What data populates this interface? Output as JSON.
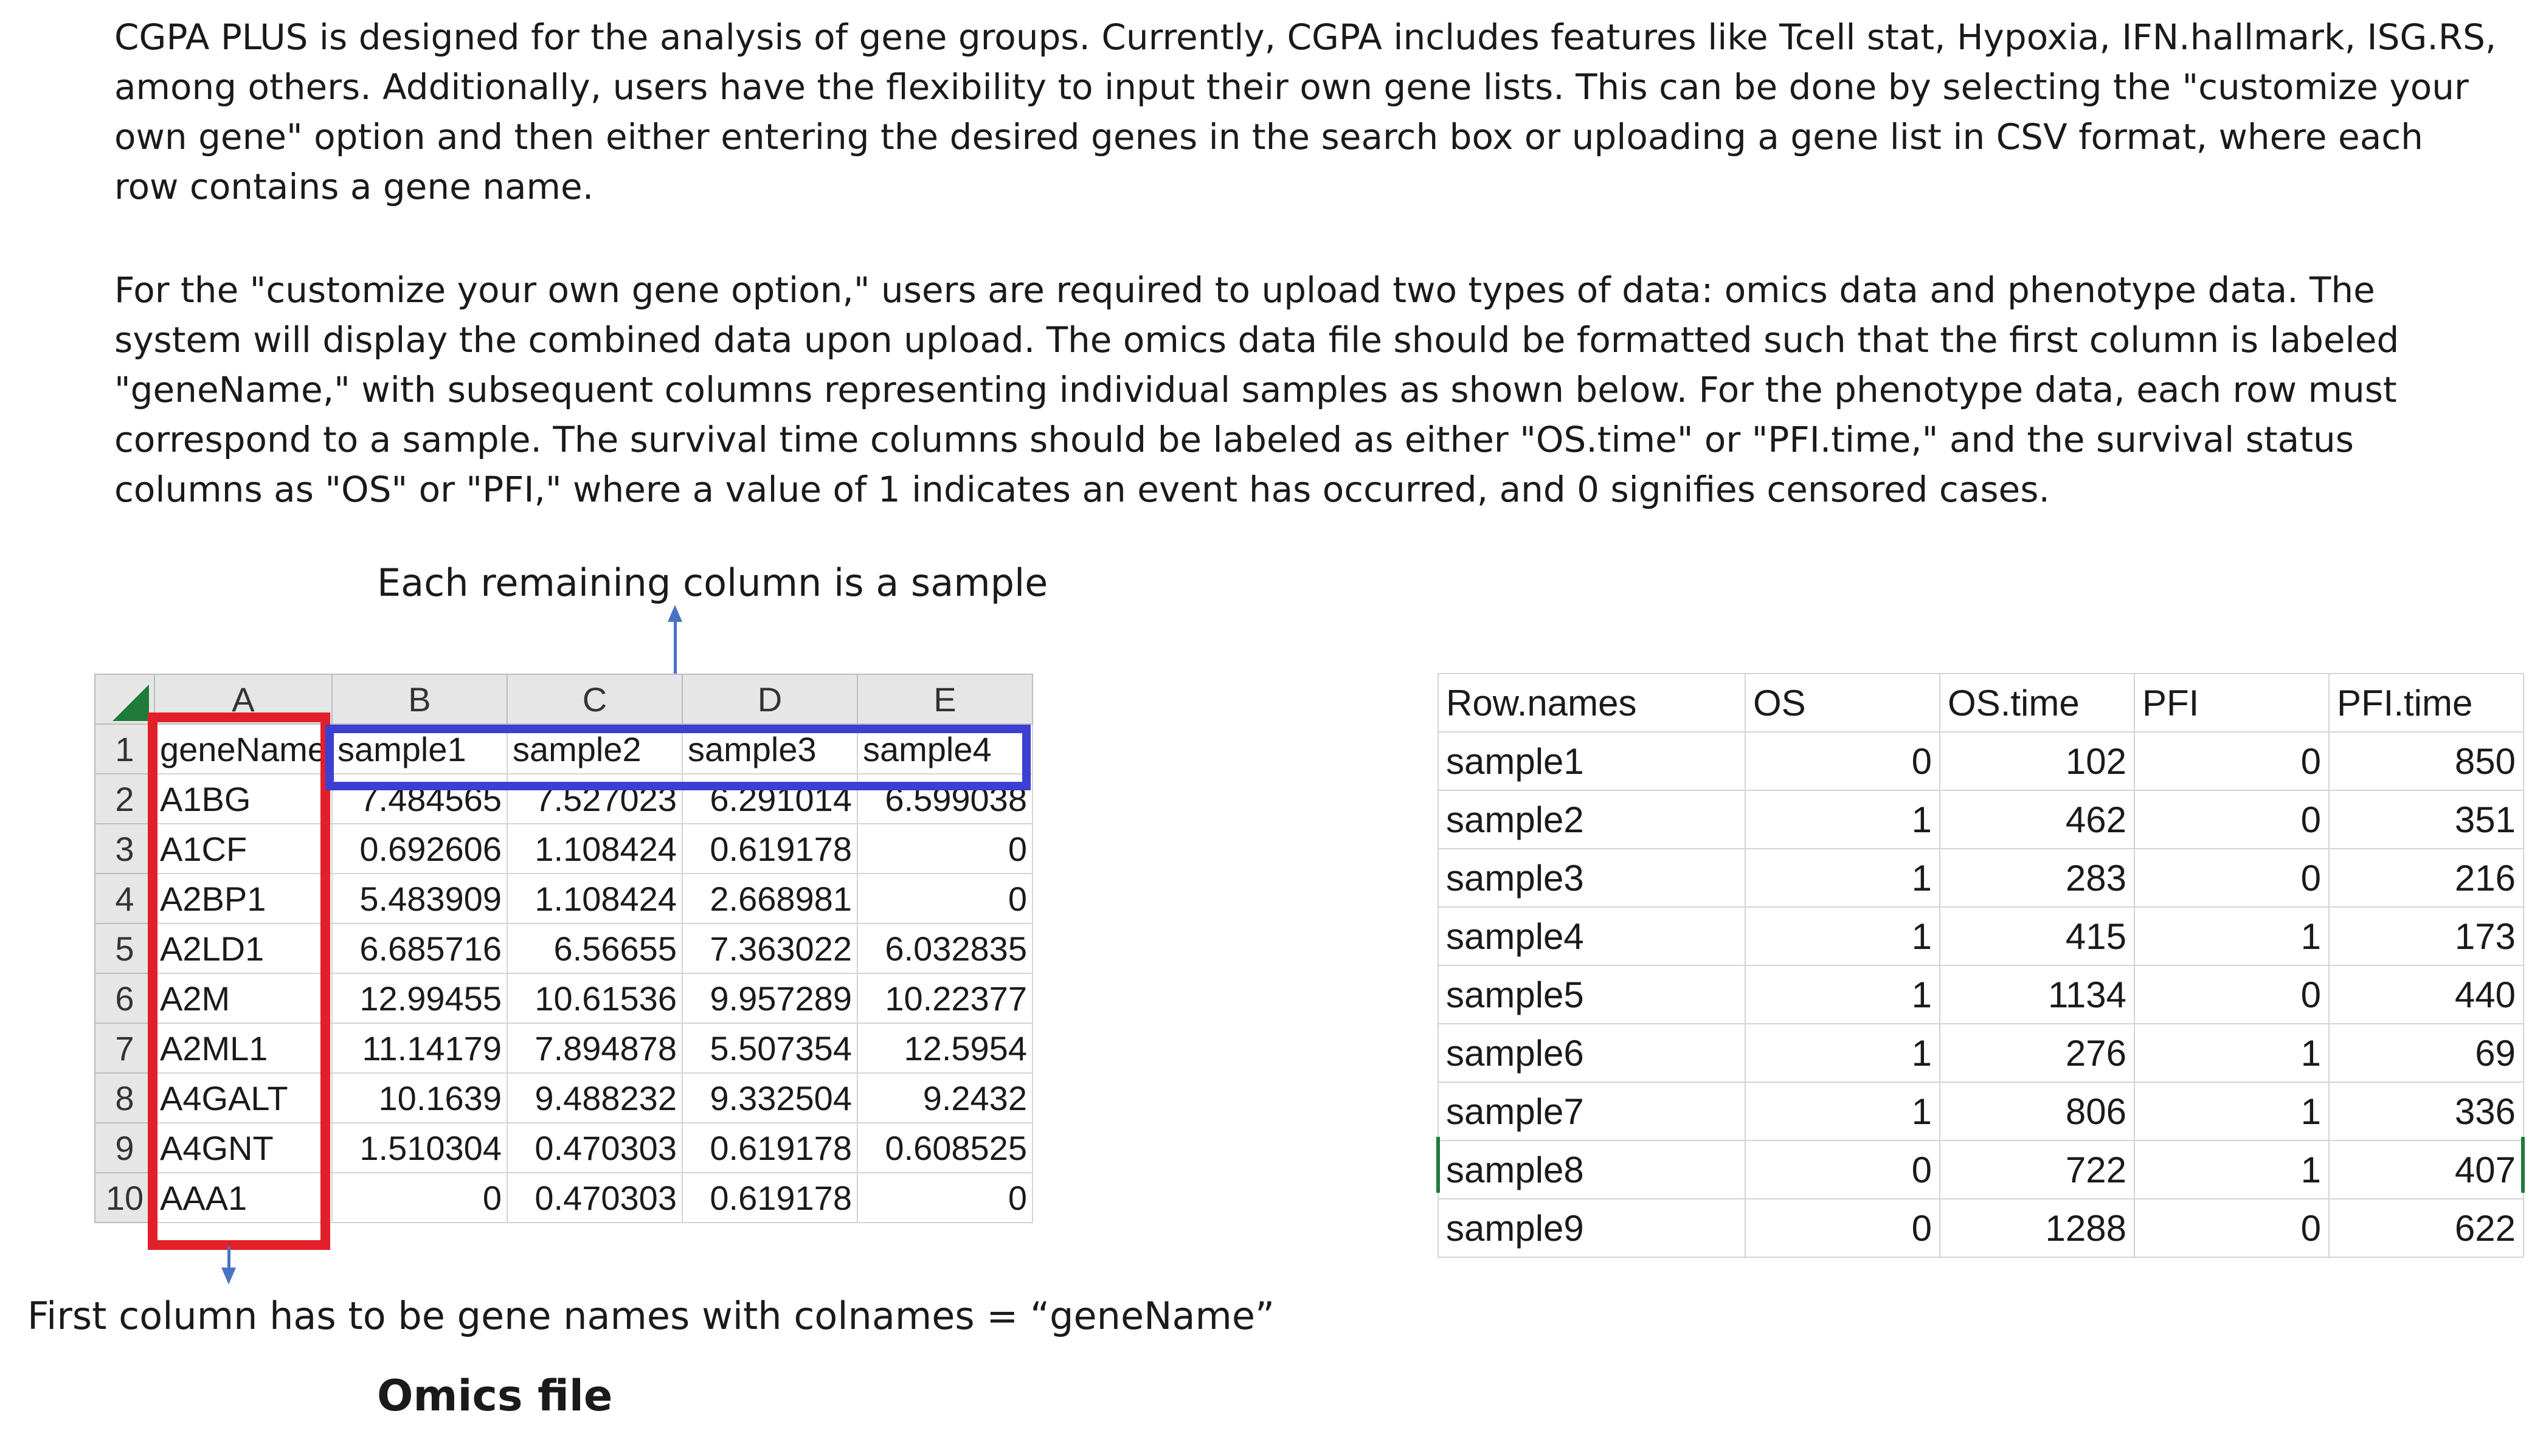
{
  "paragraphs": {
    "intro": "CGPA PLUS is designed for the analysis of gene groups. Currently, CGPA includes features like Tcell stat, Hypoxia, IFN.hallmark, ISG.RS, among others. Additionally, users have the flexibility to input their own gene lists. This can be done by selecting the \"customize your own gene\" option and then either entering the desired genes in the search box or uploading a gene list in CSV format, where each row contains a gene name.",
    "upload": "For the \"customize your own gene option,\" users are required to upload two types of data: omics data and phenotype data. The system will display the combined data upon upload. The omics data file should be formatted such that the first column is labeled \"geneName,\" with subsequent columns representing individual samples as shown below. For the phenotype data, each row must correspond to a sample. The survival time columns should be labeled as either \"OS.time\" or \"PFI.time,\" and the survival status columns as \"OS\" or \"PFI,\" where a value of 1 indicates an event has occurred, and 0 signifies censored cases."
  },
  "captions": {
    "remaining_columns": "Each remaining column is a sample",
    "first_column": "First column has to be gene names with colnames = “geneName”",
    "omics_file": "Omics file"
  },
  "colors": {
    "gene_column_highlight": "#e3202a",
    "sample_header_highlight": "#3d3fd1",
    "arrow": "#4a72c4",
    "excel_corner": "#1f7a3c"
  },
  "omics_sheet": {
    "col_letters": [
      "A",
      "B",
      "C",
      "D",
      "E"
    ],
    "rows": [
      {
        "n": "1",
        "cells": [
          "geneName",
          "sample1",
          "sample2",
          "sample3",
          "sample4"
        ]
      },
      {
        "n": "2",
        "cells": [
          "A1BG",
          "7.484565",
          "7.527023",
          "6.291014",
          "6.599038"
        ]
      },
      {
        "n": "3",
        "cells": [
          "A1CF",
          "0.692606",
          "1.108424",
          "0.619178",
          "0"
        ]
      },
      {
        "n": "4",
        "cells": [
          "A2BP1",
          "5.483909",
          "1.108424",
          "2.668981",
          "0"
        ]
      },
      {
        "n": "5",
        "cells": [
          "A2LD1",
          "6.685716",
          "6.56655",
          "7.363022",
          "6.032835"
        ]
      },
      {
        "n": "6",
        "cells": [
          "A2M",
          "12.99455",
          "10.61536",
          "9.957289",
          "10.22377"
        ]
      },
      {
        "n": "7",
        "cells": [
          "A2ML1",
          "11.14179",
          "7.894878",
          "5.507354",
          "12.5954"
        ]
      },
      {
        "n": "8",
        "cells": [
          "A4GALT",
          "10.1639",
          "9.488232",
          "9.332504",
          "9.2432"
        ]
      },
      {
        "n": "9",
        "cells": [
          "A4GNT",
          "1.510304",
          "0.470303",
          "0.619178",
          "0.608525"
        ]
      },
      {
        "n": "10",
        "cells": [
          "AAA1",
          "0",
          "0.470303",
          "0.619178",
          "0"
        ]
      }
    ]
  },
  "phenotype_sheet": {
    "headers": [
      "Row.names",
      "OS",
      "OS.time",
      "PFI",
      "PFI.time"
    ],
    "rows": [
      [
        "sample1",
        "0",
        "102",
        "0",
        "850"
      ],
      [
        "sample2",
        "1",
        "462",
        "0",
        "351"
      ],
      [
        "sample3",
        "1",
        "283",
        "0",
        "216"
      ],
      [
        "sample4",
        "1",
        "415",
        "1",
        "173"
      ],
      [
        "sample5",
        "1",
        "1134",
        "0",
        "440"
      ],
      [
        "sample6",
        "1",
        "276",
        "1",
        "69"
      ],
      [
        "sample7",
        "1",
        "806",
        "1",
        "336"
      ],
      [
        "sample8",
        "0",
        "722",
        "1",
        "407"
      ],
      [
        "sample9",
        "0",
        "1288",
        "0",
        "622"
      ]
    ]
  }
}
